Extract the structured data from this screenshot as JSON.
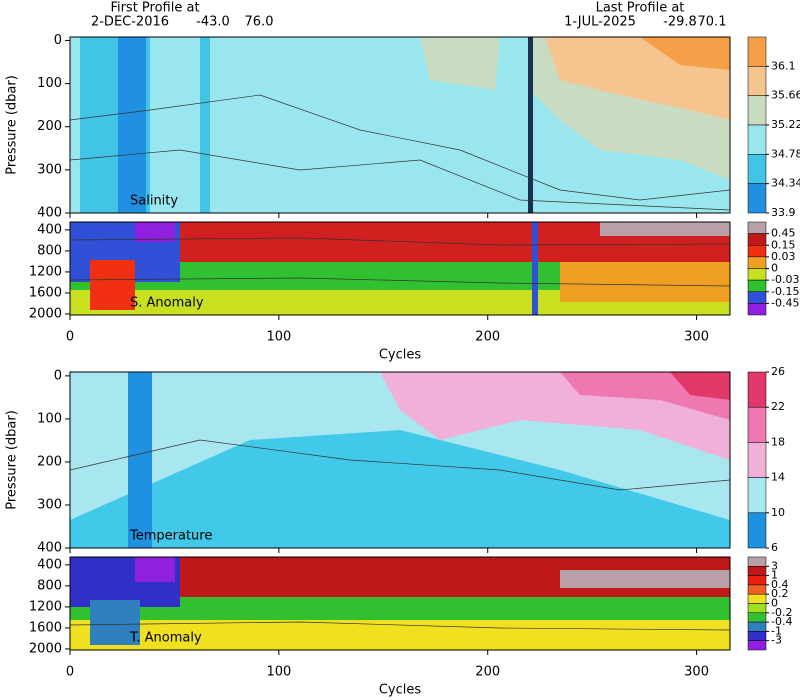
{
  "header": {
    "first_label": "First Profile at",
    "first_date": "2-DEC-2016",
    "first_lat": "-43.0",
    "first_lon": "76.0",
    "last_label": "Last Profile at",
    "last_date": "1-JUL-2025",
    "last_lat": "-29.8",
    "last_lon": "70.1"
  },
  "chart_data": [
    {
      "type": "contour",
      "label": "Salinity",
      "ylabel": "Pressure (dbar)",
      "xlim": [
        0,
        316
      ],
      "xticks": [
        0,
        100,
        200,
        300
      ],
      "ylim": [
        -8,
        400
      ],
      "yticks": [
        0,
        100,
        200,
        300,
        400
      ],
      "colorbar": {
        "levels": [
          36.1,
          35.66,
          35.22,
          34.78,
          34.34,
          33.9
        ],
        "colors": [
          "#f5a048",
          "#f6c48e",
          "#c9dcc2",
          "#9ae6ee",
          "#42c4e4",
          "#2290e0"
        ]
      }
    },
    {
      "type": "contour",
      "label": "S. Anomaly",
      "xlabel": "Cycles",
      "xlim": [
        0,
        316
      ],
      "xticks": [
        0,
        100,
        200,
        300
      ],
      "ylim": [
        250,
        2020
      ],
      "yticks": [
        400,
        800,
        1200,
        1600,
        2000
      ],
      "colorbar": {
        "levels": [
          0.45,
          0.15,
          0.03,
          0,
          -0.03,
          -0.15,
          -0.45
        ],
        "colors": [
          "#b8a0a8",
          "#c01818",
          "#f03010",
          "#f0a020",
          "#c8e020",
          "#30c030",
          "#3050d8",
          "#9020e0"
        ]
      }
    },
    {
      "type": "contour",
      "label": "Temperature",
      "ylabel": "Pressure (dbar)",
      "xlim": [
        0,
        316
      ],
      "xticks": [
        0,
        100,
        200,
        300
      ],
      "ylim": [
        -9,
        400
      ],
      "yticks": [
        0,
        100,
        200,
        300,
        400
      ],
      "colorbar": {
        "levels": [
          26,
          22,
          18,
          14,
          10,
          6
        ],
        "colors": [
          "#e03868",
          "#f078b0",
          "#f0b0d8",
          "#a8e6f0",
          "#2090e0"
        ]
      }
    },
    {
      "type": "contour",
      "label": "T. Anomaly",
      "xlabel": "Cycles",
      "xlim": [
        0,
        316
      ],
      "xticks": [
        0,
        100,
        200,
        300
      ],
      "ylim": [
        250,
        2020
      ],
      "yticks": [
        400,
        800,
        1200,
        1600,
        2000
      ],
      "colorbar": {
        "levels": [
          3,
          1,
          0.4,
          0.2,
          0,
          -0.2,
          -0.4,
          -1,
          -3
        ],
        "colors": [
          "#b8a0a8",
          "#c01818",
          "#e82010",
          "#f06020",
          "#f0e020",
          "#a0e020",
          "#30c030",
          "#3080c0",
          "#3030c8",
          "#9020e0"
        ]
      }
    }
  ]
}
